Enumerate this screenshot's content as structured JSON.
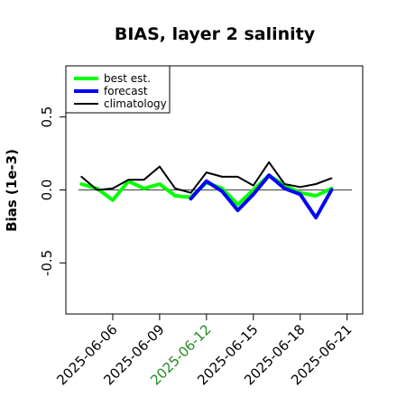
{
  "chart_data": {
    "type": "line",
    "title": "BIAS, layer 2 salinity",
    "xlabel": "",
    "ylabel": "Bias (1e-3)",
    "x": [
      "2025-06-04",
      "2025-06-05",
      "2025-06-06",
      "2025-06-07",
      "2025-06-08",
      "2025-06-09",
      "2025-06-10",
      "2025-06-11",
      "2025-06-12",
      "2025-06-13",
      "2025-06-14",
      "2025-06-15",
      "2025-06-16",
      "2025-06-17",
      "2025-06-18",
      "2025-06-19",
      "2025-06-20",
      "2025-06-21"
    ],
    "x_ticks": [
      "2025-06-06",
      "2025-06-09",
      "2025-06-12",
      "2025-06-15",
      "2025-06-18",
      "2025-06-21"
    ],
    "highlight_tick": "2025-06-12",
    "highlight_color": "#228b22",
    "xlim": [
      "2025-06-03",
      "2025-06-22"
    ],
    "ylim": [
      -0.85,
      0.85
    ],
    "y_ticks": [
      -0.5,
      0.0,
      0.5
    ],
    "y_tick_labels": [
      "-0.5",
      "0.0",
      "0.5"
    ],
    "zero_line": true,
    "grid": false,
    "legend_position": "top-left",
    "series": [
      {
        "name": "best est.",
        "color": "#00ff00",
        "width": "thick",
        "values": [
          0.04,
          0.01,
          -0.07,
          0.06,
          0.01,
          0.04,
          -0.04,
          -0.05,
          0.05,
          0.01,
          -0.1,
          0.0,
          0.1,
          0.03,
          -0.02,
          -0.04,
          0.01,
          null
        ]
      },
      {
        "name": "forecast",
        "color": "#0000ff",
        "width": "thick",
        "values": [
          null,
          null,
          null,
          null,
          null,
          null,
          null,
          -0.06,
          0.06,
          -0.01,
          -0.14,
          -0.03,
          0.1,
          0.01,
          -0.03,
          -0.19,
          0.0,
          null
        ]
      },
      {
        "name": "climatology",
        "color": "#000000",
        "width": "thin",
        "values": [
          0.09,
          0.0,
          0.01,
          0.07,
          0.07,
          0.16,
          0.01,
          -0.02,
          0.12,
          0.09,
          0.09,
          0.03,
          0.19,
          0.04,
          0.02,
          0.04,
          0.08,
          null
        ]
      }
    ]
  }
}
